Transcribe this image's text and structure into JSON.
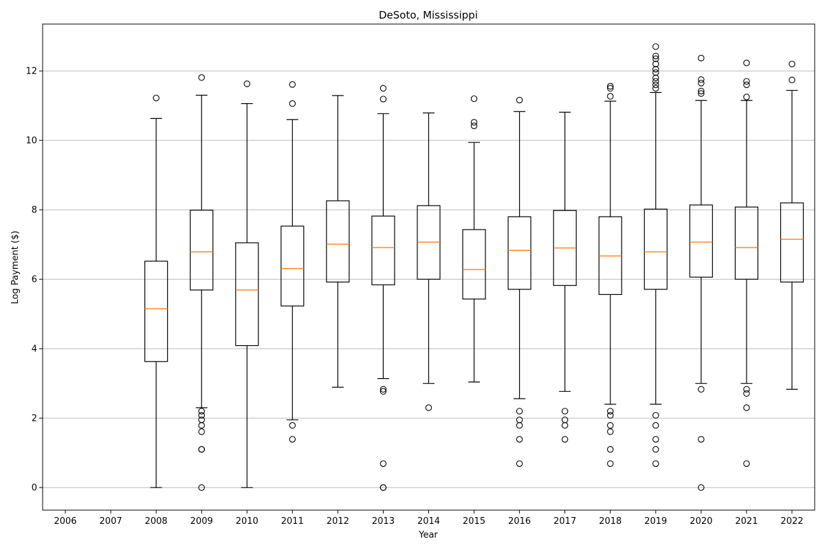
{
  "chart_data": {
    "type": "box",
    "title": "DeSoto, Mississippi",
    "xlabel": "Year",
    "ylabel": "Log Payment ($)",
    "ylim": [
      -0.65,
      13.35
    ],
    "yticks": [
      0,
      2,
      4,
      6,
      8,
      10,
      12
    ],
    "grid": "y",
    "categories": [
      "2006",
      "2007",
      "2008",
      "2009",
      "2010",
      "2011",
      "2012",
      "2013",
      "2014",
      "2015",
      "2016",
      "2017",
      "2018",
      "2019",
      "2020",
      "2021",
      "2022"
    ],
    "colors": {
      "box": "#000000",
      "median": "#ff7f0e",
      "grid": "#b0b0b0"
    },
    "boxes": [
      null,
      null,
      {
        "whislo": 0.0,
        "q1": 3.63,
        "med": 5.15,
        "q3": 6.52,
        "whishi": 10.63,
        "fliers": [
          11.22
        ]
      },
      {
        "whislo": 2.3,
        "q1": 5.69,
        "med": 6.79,
        "q3": 7.99,
        "whishi": 11.3,
        "fliers": [
          0.0,
          1.1,
          1.1,
          1.61,
          1.79,
          1.95,
          2.08,
          2.2,
          11.81
        ]
      },
      {
        "whislo": 0.0,
        "q1": 4.09,
        "med": 5.69,
        "q3": 7.05,
        "whishi": 11.06,
        "fliers": [
          11.63
        ]
      },
      {
        "whislo": 1.95,
        "q1": 5.23,
        "med": 6.31,
        "q3": 7.53,
        "whishi": 10.6,
        "fliers": [
          1.39,
          1.79,
          11.06,
          11.61
        ]
      },
      {
        "whislo": 2.89,
        "q1": 5.92,
        "med": 7.01,
        "q3": 8.26,
        "whishi": 11.29,
        "fliers": []
      },
      {
        "whislo": 3.14,
        "q1": 5.84,
        "med": 6.91,
        "q3": 7.82,
        "whishi": 10.77,
        "fliers": [
          0.0,
          0.0,
          0.69,
          2.77,
          2.83,
          11.19,
          11.5
        ]
      },
      {
        "whislo": 3.0,
        "q1": 6.0,
        "med": 7.07,
        "q3": 8.12,
        "whishi": 10.79,
        "fliers": [
          2.3
        ]
      },
      {
        "whislo": 3.04,
        "q1": 5.43,
        "med": 6.28,
        "q3": 7.43,
        "whishi": 9.94,
        "fliers": [
          10.42,
          10.52,
          11.2
        ]
      },
      {
        "whislo": 2.56,
        "q1": 5.71,
        "med": 6.83,
        "q3": 7.8,
        "whishi": 10.83,
        "fliers": [
          0.69,
          1.39,
          1.79,
          1.95,
          2.2,
          11.16
        ]
      },
      {
        "whislo": 2.77,
        "q1": 5.82,
        "med": 6.9,
        "q3": 7.98,
        "whishi": 10.81,
        "fliers": [
          1.39,
          1.79,
          1.95,
          2.2
        ]
      },
      {
        "whislo": 2.4,
        "q1": 5.56,
        "med": 6.67,
        "q3": 7.8,
        "whishi": 11.13,
        "fliers": [
          0.69,
          1.1,
          1.61,
          1.79,
          2.08,
          2.2,
          11.27,
          11.5,
          11.56
        ]
      },
      {
        "whislo": 2.4,
        "q1": 5.71,
        "med": 6.79,
        "q3": 8.02,
        "whishi": 11.38,
        "fliers": [
          0.69,
          1.1,
          1.39,
          1.79,
          2.08,
          11.5,
          11.6,
          11.7,
          11.8,
          11.95,
          12.05,
          12.2,
          12.35,
          12.43,
          12.7
        ]
      },
      {
        "whislo": 3.0,
        "q1": 6.06,
        "med": 7.07,
        "q3": 8.14,
        "whishi": 11.15,
        "fliers": [
          0.0,
          1.39,
          2.83,
          11.35,
          11.42,
          11.65,
          11.75,
          12.37
        ]
      },
      {
        "whislo": 3.0,
        "q1": 6.0,
        "med": 6.91,
        "q3": 8.08,
        "whishi": 11.15,
        "fliers": [
          0.69,
          2.3,
          2.71,
          2.83,
          11.25,
          11.6,
          11.7,
          12.23
        ]
      },
      {
        "whislo": 2.83,
        "q1": 5.92,
        "med": 7.15,
        "q3": 8.2,
        "whishi": 11.44,
        "fliers": [
          11.74,
          12.2
        ]
      }
    ]
  }
}
